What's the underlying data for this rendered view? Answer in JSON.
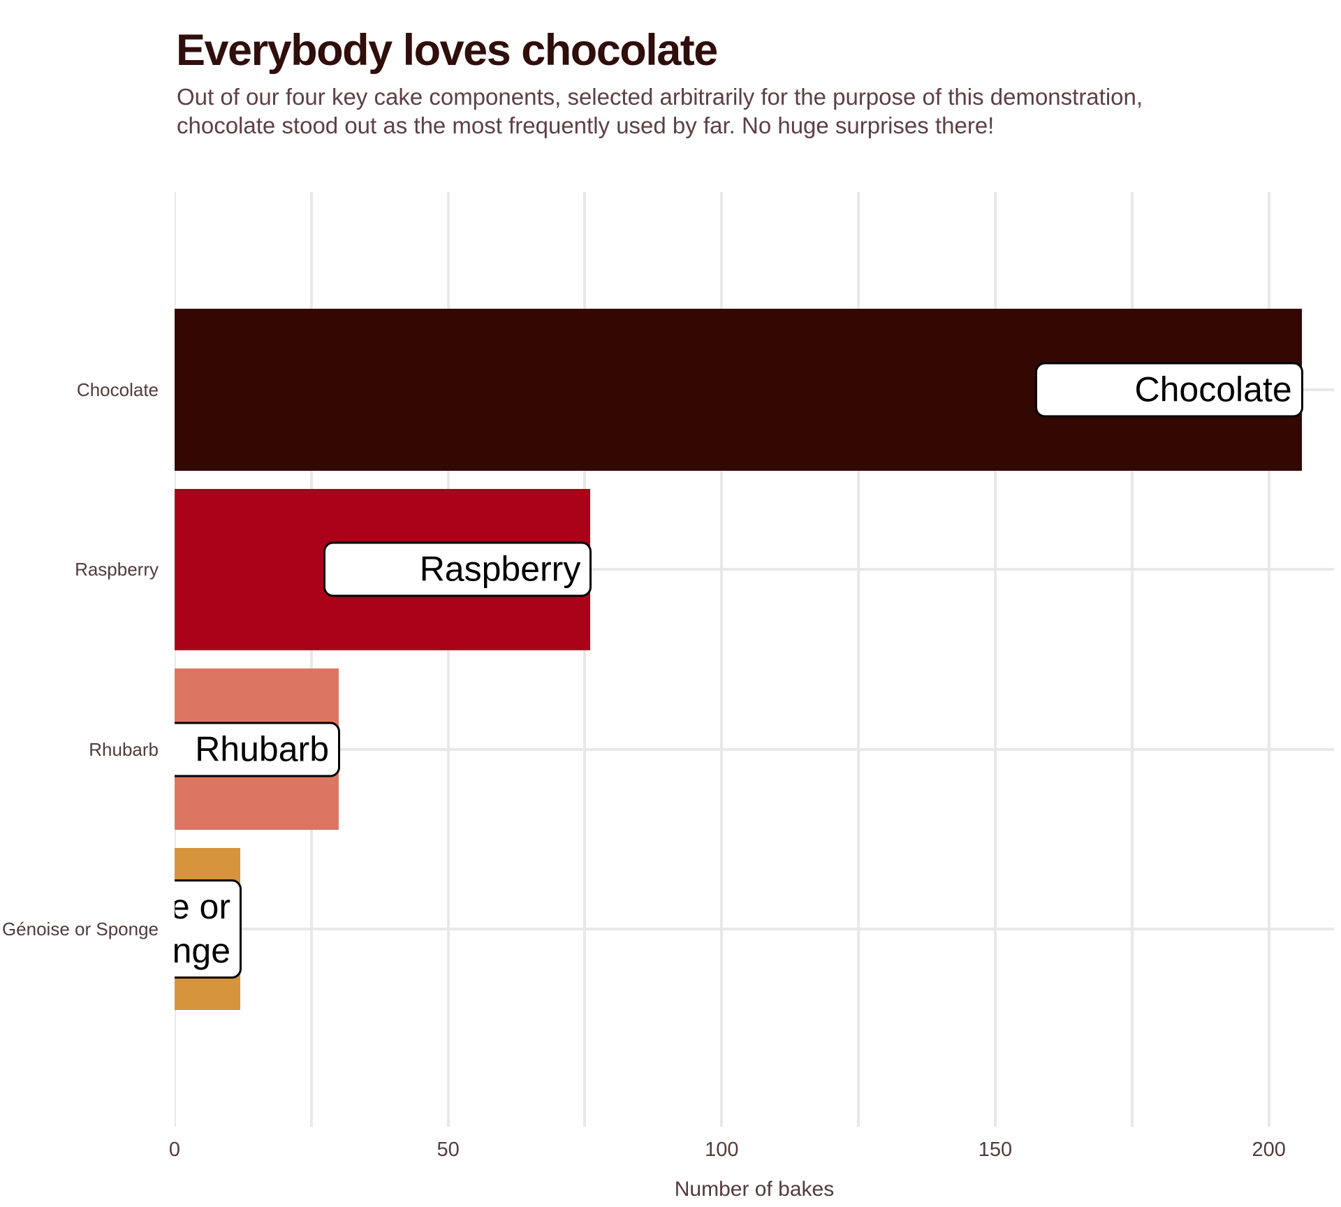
{
  "chart_data": {
    "type": "bar",
    "orientation": "horizontal",
    "title": "Everybody loves chocolate",
    "subtitle": "Out of our four key cake components, selected arbitrarily for the purpose of this demonstration, chocolate stood out as the most frequently used by far. No huge surprises there!",
    "xlabel": "Number of bakes",
    "ylabel": "",
    "categories": [
      "Chocolate",
      "Raspberry",
      "Rhubarb",
      "Génoise or Sponge"
    ],
    "values": [
      206,
      76,
      30,
      12
    ],
    "bar_colors": [
      "#330702",
      "#aa0219",
      "#dc7663",
      "#d6943d"
    ],
    "bar_end_labels": [
      "Chocolate",
      "Raspberry",
      "Rhubarb",
      "Génoise or Sponge"
    ],
    "x_ticks": [
      0,
      50,
      100,
      150,
      200
    ],
    "xlim": [
      0,
      212
    ],
    "grid_step": 25,
    "grid": true,
    "legend": false
  },
  "theme": {
    "background": "#ffffff",
    "title_color": "#2f0e0c",
    "subtitle_color": "#5c4043",
    "axis_text_color": "#513b3c",
    "gridline_color": "#e8e8e8",
    "label_box_bg": "#ffffff",
    "label_box_border": "#000000",
    "label_text_color": "#000000"
  }
}
